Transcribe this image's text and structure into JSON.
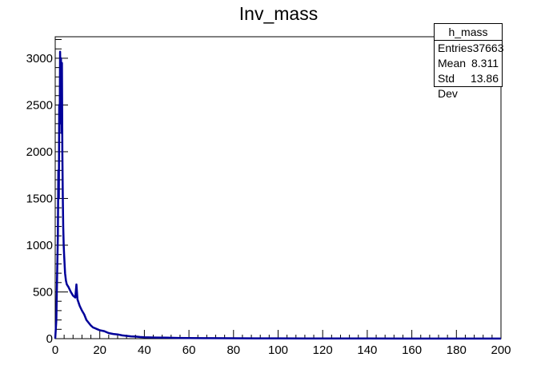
{
  "chart_data": {
    "type": "bar",
    "title": "Inv_mass",
    "xlabel": "",
    "ylabel": "",
    "xlim": [
      0,
      200
    ],
    "ylim": [
      0,
      3230
    ],
    "x_ticks": [
      "0",
      "20",
      "40",
      "60",
      "80",
      "100",
      "120",
      "140",
      "160",
      "180",
      "200"
    ],
    "y_ticks": [
      "0",
      "500",
      "1000",
      "1500",
      "2000",
      "2500",
      "3000"
    ],
    "line_color": "#000099",
    "points": [
      [
        0,
        0
      ],
      [
        0.5,
        200
      ],
      [
        0.8,
        600
      ],
      [
        1.2,
        1100
      ],
      [
        1.4,
        1800
      ],
      [
        1.6,
        1500
      ],
      [
        1.8,
        2500
      ],
      [
        2.0,
        2300
      ],
      [
        2.2,
        3070
      ],
      [
        2.4,
        2700
      ],
      [
        2.6,
        3000
      ],
      [
        2.8,
        2200
      ],
      [
        3.0,
        2950
      ],
      [
        3.2,
        2000
      ],
      [
        3.4,
        1500
      ],
      [
        3.6,
        1200
      ],
      [
        3.8,
        1000
      ],
      [
        4.0,
        900
      ],
      [
        4.4,
        700
      ],
      [
        4.8,
        620
      ],
      [
        5.2,
        580
      ],
      [
        6.0,
        550
      ],
      [
        7.0,
        500
      ],
      [
        8.0,
        460
      ],
      [
        9.0,
        440
      ],
      [
        9.5,
        580
      ],
      [
        10,
        420
      ],
      [
        11,
        350
      ],
      [
        12,
        300
      ],
      [
        13,
        260
      ],
      [
        14,
        200
      ],
      [
        15,
        170
      ],
      [
        16,
        140
      ],
      [
        17,
        120
      ],
      [
        18,
        110
      ],
      [
        19,
        100
      ],
      [
        20,
        90
      ],
      [
        22,
        80
      ],
      [
        24,
        60
      ],
      [
        26,
        50
      ],
      [
        28,
        45
      ],
      [
        30,
        35
      ],
      [
        32,
        30
      ],
      [
        34,
        25
      ],
      [
        36,
        22
      ],
      [
        38,
        18
      ],
      [
        40,
        15
      ],
      [
        45,
        12
      ],
      [
        50,
        10
      ],
      [
        55,
        8
      ],
      [
        60,
        6
      ],
      [
        70,
        5
      ],
      [
        80,
        4
      ],
      [
        90,
        3
      ],
      [
        100,
        3
      ],
      [
        120,
        2
      ],
      [
        140,
        2
      ],
      [
        160,
        1
      ],
      [
        180,
        1
      ],
      [
        200,
        1
      ]
    ],
    "stats_box": {
      "name": "h_mass",
      "entries_label": "Entries",
      "entries_value": "37663",
      "mean_label": "Mean",
      "mean_value": "8.311",
      "std_label": "Std Dev",
      "std_value": "13.86"
    }
  }
}
